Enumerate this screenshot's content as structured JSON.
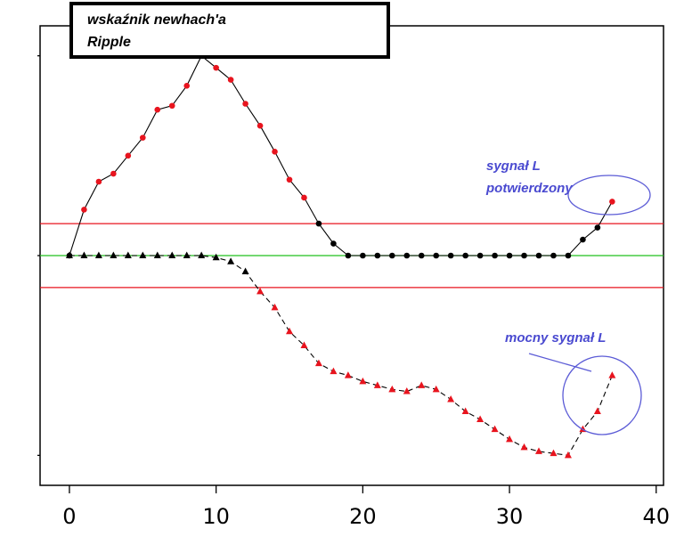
{
  "chart_data": {
    "type": "line",
    "title_lines": [
      "wskaźnik newhach'a",
      "Ripple"
    ],
    "xlim": [
      -2,
      40.5
    ],
    "ylim": [
      -1.15,
      1.15
    ],
    "x_ticks": [
      0,
      10,
      20,
      30,
      40
    ],
    "y_ticks": [
      -1,
      0,
      1
    ],
    "hlines": [
      {
        "y": 0.16,
        "color": "#e8141e"
      },
      {
        "y": 0.0,
        "color": "#22c01e"
      },
      {
        "y": -0.16,
        "color": "#e8141e"
      }
    ],
    "series": [
      {
        "line_style": "solid",
        "marker": "circle",
        "x": [
          0,
          1,
          2,
          3,
          4,
          5,
          6,
          7,
          8,
          9,
          10,
          11,
          12,
          13,
          14,
          15,
          16,
          17,
          18,
          19,
          20,
          21,
          22,
          23,
          24,
          25,
          26,
          27,
          28,
          29,
          30,
          31,
          32,
          33,
          34,
          35,
          36,
          37
        ],
        "values": [
          0.0,
          0.23,
          0.37,
          0.41,
          0.5,
          0.59,
          0.73,
          0.75,
          0.85,
          1.0,
          0.94,
          0.88,
          0.76,
          0.65,
          0.52,
          0.38,
          0.29,
          0.16,
          0.06,
          0.0,
          0.0,
          0.0,
          0.0,
          0.0,
          0.0,
          0.0,
          0.0,
          0.0,
          0.0,
          0.0,
          0.0,
          0.0,
          0.0,
          0.0,
          0.0,
          0.08,
          0.14,
          0.27
        ],
        "colors": [
          "#000000",
          "#e8141e",
          "#e8141e",
          "#e8141e",
          "#e8141e",
          "#e8141e",
          "#e8141e",
          "#e8141e",
          "#e8141e",
          "#e8141e",
          "#e8141e",
          "#e8141e",
          "#e8141e",
          "#e8141e",
          "#e8141e",
          "#e8141e",
          "#e8141e",
          "#000000",
          "#000000",
          "#000000",
          "#000000",
          "#000000",
          "#000000",
          "#000000",
          "#000000",
          "#000000",
          "#000000",
          "#000000",
          "#000000",
          "#000000",
          "#000000",
          "#000000",
          "#000000",
          "#000000",
          "#000000",
          "#000000",
          "#000000",
          "#e8141e"
        ]
      },
      {
        "line_style": "dashed",
        "marker": "triangle",
        "x": [
          0,
          1,
          2,
          3,
          4,
          5,
          6,
          7,
          8,
          9,
          10,
          11,
          12,
          13,
          14,
          15,
          16,
          17,
          18,
          19,
          20,
          21,
          22,
          23,
          24,
          25,
          26,
          27,
          28,
          29,
          30,
          31,
          32,
          33,
          34,
          35,
          36,
          37
        ],
        "values": [
          0.0,
          0.0,
          0.0,
          0.0,
          0.0,
          0.0,
          0.0,
          0.0,
          0.0,
          0.0,
          -0.01,
          -0.03,
          -0.08,
          -0.18,
          -0.26,
          -0.38,
          -0.45,
          -0.54,
          -0.58,
          -0.6,
          -0.63,
          -0.65,
          -0.67,
          -0.68,
          -0.65,
          -0.67,
          -0.72,
          -0.78,
          -0.82,
          -0.87,
          -0.92,
          -0.96,
          -0.98,
          -0.99,
          -1.0,
          -0.87,
          -0.78,
          -0.6
        ],
        "colors": [
          "#000000",
          "#000000",
          "#000000",
          "#000000",
          "#000000",
          "#000000",
          "#000000",
          "#000000",
          "#000000",
          "#000000",
          "#000000",
          "#000000",
          "#000000",
          "#e8141e",
          "#e8141e",
          "#e8141e",
          "#e8141e",
          "#e8141e",
          "#e8141e",
          "#e8141e",
          "#e8141e",
          "#e8141e",
          "#e8141e",
          "#e8141e",
          "#e8141e",
          "#e8141e",
          "#e8141e",
          "#e8141e",
          "#e8141e",
          "#e8141e",
          "#e8141e",
          "#e8141e",
          "#e8141e",
          "#e8141e",
          "#e8141e",
          "#e8141e",
          "#e8141e",
          "#e8141e"
        ]
      }
    ],
    "annotations": [
      {
        "lines": [
          "sygnał L",
          "potwierdzony"
        ]
      },
      {
        "lines": [
          "mocny sygnał L"
        ]
      }
    ],
    "annotation_color": "#4a4ad0"
  }
}
